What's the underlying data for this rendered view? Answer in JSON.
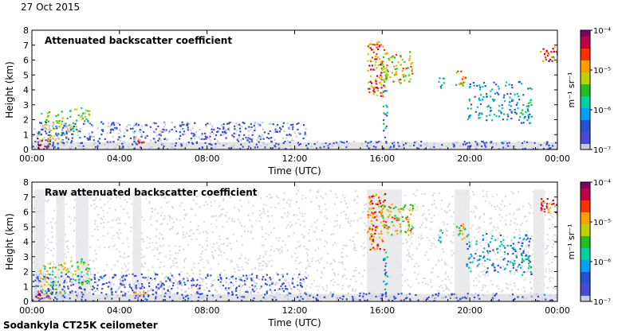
{
  "header": {
    "date": "27 Oct 2015"
  },
  "footer": {
    "instrument": "Sodankyla CT25K ceilometer"
  },
  "colors": {
    "colormap": [
      "#c8c8e6",
      "#4b4bd2",
      "#2850d0",
      "#00a0ff",
      "#00d0a0",
      "#20c020",
      "#c0d000",
      "#ffa000",
      "#ff3000",
      "#c00040",
      "#800060"
    ],
    "noise": "#d9d9d9",
    "clear": "#ffffff"
  },
  "chart_data": [
    {
      "type": "heatmap",
      "title": "Attenuated backscatter coefficient",
      "xlabel": "Time (UTC)",
      "ylabel": "Height (km)",
      "x_ticks": [
        "00:00",
        "04:00",
        "08:00",
        "12:00",
        "16:00",
        "20:00",
        "00:00"
      ],
      "y_ticks": [
        "0",
        "1",
        "2",
        "3",
        "4",
        "5",
        "6",
        "7",
        "8"
      ],
      "xlim_hours": [
        0,
        24
      ],
      "ylim_km": [
        0,
        8
      ],
      "colorbar": {
        "scale": "log",
        "ticks": [
          "10⁻⁷",
          "10⁻⁶",
          "10⁻⁵",
          "10⁻⁴"
        ],
        "range": [
          1e-07,
          0.0001
        ],
        "unit_label": "m⁻¹ sr⁻¹"
      },
      "noise_mask": false,
      "features": [
        {
          "t0": 0.1,
          "t1": 0.8,
          "h0": 0.0,
          "h1": 0.9,
          "level": 0.9,
          "density": 0.9
        },
        {
          "t0": 0.3,
          "t1": 1.6,
          "h0": 0.5,
          "h1": 2.6,
          "level": 0.55,
          "density": 0.6
        },
        {
          "t0": 1.6,
          "t1": 2.6,
          "h0": 1.2,
          "h1": 3.0,
          "level": 0.5,
          "density": 0.6
        },
        {
          "t0": 0.0,
          "t1": 12.5,
          "h0": 0.0,
          "h1": 1.9,
          "level": 0.08,
          "density": 0.7
        },
        {
          "t0": 4.6,
          "t1": 5.1,
          "h0": 0.4,
          "h1": 0.8,
          "level": 0.85,
          "density": 0.9
        },
        {
          "t0": 12.5,
          "t1": 24.0,
          "h0": 0.0,
          "h1": 0.6,
          "level": 0.08,
          "density": 0.8
        },
        {
          "t0": 15.3,
          "t1": 16.1,
          "h0": 3.5,
          "h1": 7.3,
          "level": 0.75,
          "density": 0.85
        },
        {
          "t0": 15.9,
          "t1": 17.4,
          "h0": 4.5,
          "h1": 6.6,
          "level": 0.6,
          "density": 0.7
        },
        {
          "t0": 16.0,
          "t1": 16.2,
          "h0": 0.5,
          "h1": 4.0,
          "level": 0.3,
          "density": 0.7
        },
        {
          "t0": 18.5,
          "t1": 18.8,
          "h0": 4.0,
          "h1": 5.0,
          "level": 0.4,
          "density": 0.7
        },
        {
          "t0": 19.3,
          "t1": 19.8,
          "h0": 4.2,
          "h1": 5.3,
          "level": 0.65,
          "density": 0.8
        },
        {
          "t0": 19.8,
          "t1": 22.8,
          "h0": 2.0,
          "h1": 4.6,
          "level": 0.3,
          "density": 0.45
        },
        {
          "t0": 22.3,
          "t1": 22.8,
          "h0": 1.8,
          "h1": 3.3,
          "level": 0.35,
          "density": 0.6
        },
        {
          "t0": 23.2,
          "t1": 24.0,
          "h0": 5.9,
          "h1": 7.0,
          "level": 0.8,
          "density": 0.9
        }
      ]
    },
    {
      "type": "heatmap",
      "title": "Raw attenuated backscatter coefficient",
      "xlabel": "Time (UTC)",
      "ylabel": "Height (km)",
      "x_ticks": [
        "00:00",
        "04:00",
        "08:00",
        "12:00",
        "16:00",
        "20:00",
        "00:00"
      ],
      "y_ticks": [
        "0",
        "1",
        "2",
        "3",
        "4",
        "5",
        "6",
        "7",
        "8"
      ],
      "xlim_hours": [
        0,
        24
      ],
      "ylim_km": [
        0,
        8
      ],
      "colorbar": {
        "scale": "log",
        "ticks": [
          "10⁻⁷",
          "10⁻⁶",
          "10⁻⁵",
          "10⁻⁴"
        ],
        "range": [
          1e-07,
          0.0001
        ],
        "unit_label": "m⁻¹ sr⁻¹"
      },
      "noise_mask": true,
      "features": [
        {
          "t0": 0.1,
          "t1": 0.8,
          "h0": 0.0,
          "h1": 0.9,
          "level": 0.9,
          "density": 0.9
        },
        {
          "t0": 0.3,
          "t1": 1.6,
          "h0": 0.5,
          "h1": 2.6,
          "level": 0.55,
          "density": 0.6
        },
        {
          "t0": 1.6,
          "t1": 2.6,
          "h0": 1.2,
          "h1": 3.0,
          "level": 0.5,
          "density": 0.6
        },
        {
          "t0": 0.0,
          "t1": 12.5,
          "h0": 0.0,
          "h1": 1.9,
          "level": 0.08,
          "density": 0.7
        },
        {
          "t0": 4.6,
          "t1": 5.1,
          "h0": 0.4,
          "h1": 0.8,
          "level": 0.85,
          "density": 0.9
        },
        {
          "t0": 12.5,
          "t1": 24.0,
          "h0": 0.0,
          "h1": 0.6,
          "level": 0.08,
          "density": 0.8
        },
        {
          "t0": 15.3,
          "t1": 16.1,
          "h0": 3.5,
          "h1": 7.3,
          "level": 0.75,
          "density": 0.85
        },
        {
          "t0": 15.9,
          "t1": 17.4,
          "h0": 4.5,
          "h1": 6.6,
          "level": 0.6,
          "density": 0.7
        },
        {
          "t0": 16.0,
          "t1": 16.2,
          "h0": 0.5,
          "h1": 4.0,
          "level": 0.3,
          "density": 0.7
        },
        {
          "t0": 18.5,
          "t1": 18.8,
          "h0": 4.0,
          "h1": 5.0,
          "level": 0.4,
          "density": 0.7
        },
        {
          "t0": 19.3,
          "t1": 19.8,
          "h0": 4.2,
          "h1": 5.3,
          "level": 0.65,
          "density": 0.8
        },
        {
          "t0": 19.8,
          "t1": 22.8,
          "h0": 2.0,
          "h1": 4.6,
          "level": 0.3,
          "density": 0.45
        },
        {
          "t0": 22.3,
          "t1": 22.8,
          "h0": 1.8,
          "h1": 3.3,
          "level": 0.35,
          "density": 0.6
        },
        {
          "t0": 23.2,
          "t1": 24.0,
          "h0": 5.9,
          "h1": 7.0,
          "level": 0.8,
          "density": 0.9
        }
      ]
    }
  ]
}
